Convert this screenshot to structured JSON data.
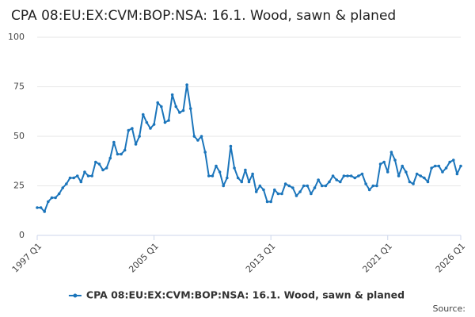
{
  "chart_data": {
    "type": "line",
    "title": "CPA 08:EU:EX:CVM:BOP:NSA: 16.1. Wood, sawn & planed",
    "source": "Source:",
    "categories": [
      "1997 Q1",
      null,
      null,
      null,
      null,
      null,
      null,
      null,
      null,
      null,
      null,
      null,
      null,
      null,
      null,
      null,
      null,
      null,
      null,
      null,
      null,
      null,
      null,
      null,
      null,
      null,
      null,
      null,
      null,
      null,
      null,
      null,
      "2005 Q1",
      null,
      null,
      null,
      null,
      null,
      null,
      null,
      null,
      null,
      null,
      null,
      null,
      null,
      null,
      null,
      null,
      null,
      null,
      null,
      null,
      null,
      null,
      null,
      null,
      null,
      null,
      null,
      null,
      null,
      null,
      null,
      "2013 Q1",
      null,
      null,
      null,
      null,
      null,
      null,
      null,
      null,
      null,
      null,
      null,
      null,
      null,
      null,
      null,
      null,
      null,
      null,
      null,
      null,
      null,
      null,
      null,
      null,
      null,
      null,
      null,
      null,
      null,
      null,
      null,
      "2021 Q1",
      null,
      null,
      null,
      null,
      null,
      null,
      null,
      null,
      null,
      null,
      null,
      null,
      null,
      null,
      null,
      null,
      null,
      null,
      null,
      "2026 Q1"
    ],
    "series": [
      {
        "name": "CPA 08:EU:EX:CVM:BOP:NSA: 16.1. Wood, sawn & planed",
        "color": "#1b75bb",
        "values": [
          14,
          14,
          12,
          17,
          19,
          19,
          21,
          24,
          26,
          29,
          29,
          30,
          27,
          32,
          30,
          30,
          37,
          36,
          33,
          34,
          39,
          47,
          41,
          41,
          43,
          53,
          54,
          46,
          50,
          61,
          57,
          54,
          56,
          67,
          65,
          57,
          58,
          71,
          65,
          62,
          63,
          76,
          64,
          50,
          48,
          50,
          42,
          30,
          30,
          35,
          32,
          25,
          29,
          45,
          34,
          29,
          27,
          33,
          27,
          31,
          22,
          25,
          23,
          17,
          17,
          23,
          21,
          21,
          26,
          25,
          24,
          20,
          22,
          25,
          25,
          21,
          24,
          28,
          25,
          25,
          27,
          30,
          28,
          27,
          30,
          30,
          30,
          29,
          30,
          31,
          26,
          23,
          25,
          25,
          36,
          37,
          32,
          42,
          38,
          30,
          35,
          32,
          27,
          26,
          31,
          30,
          29,
          27,
          34,
          35,
          35,
          32,
          34,
          37,
          38,
          31,
          35
        ]
      }
    ],
    "ylim": [
      0,
      100
    ],
    "yticks": [
      0,
      25,
      50,
      75,
      100
    ],
    "grid": true
  }
}
